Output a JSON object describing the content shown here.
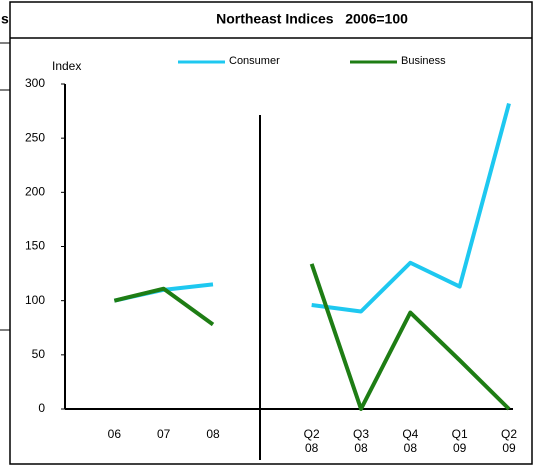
{
  "fragment": "s",
  "chart_data": {
    "type": "line",
    "title": "Northeast Indices   2006=100",
    "y_label": "Index",
    "categories": [
      null,
      "06",
      "07",
      "08",
      null,
      "Q2 08",
      "Q3 08",
      "Q4 08",
      "Q1 09",
      "Q2 09"
    ],
    "series": [
      {
        "name": "Consumer",
        "color": "#1ec8f0",
        "values": [
          null,
          100,
          110,
          115,
          null,
          96,
          90,
          135,
          113,
          282
        ]
      },
      {
        "name": "Business",
        "color": "#1e7d14",
        "values": [
          null,
          100,
          111,
          78,
          null,
          134,
          0,
          89,
          45,
          0
        ]
      }
    ],
    "ylim": [
      0,
      300
    ],
    "yticks": [
      0,
      50,
      100,
      150,
      200,
      250,
      300
    ],
    "grid": false,
    "legend": "top"
  }
}
